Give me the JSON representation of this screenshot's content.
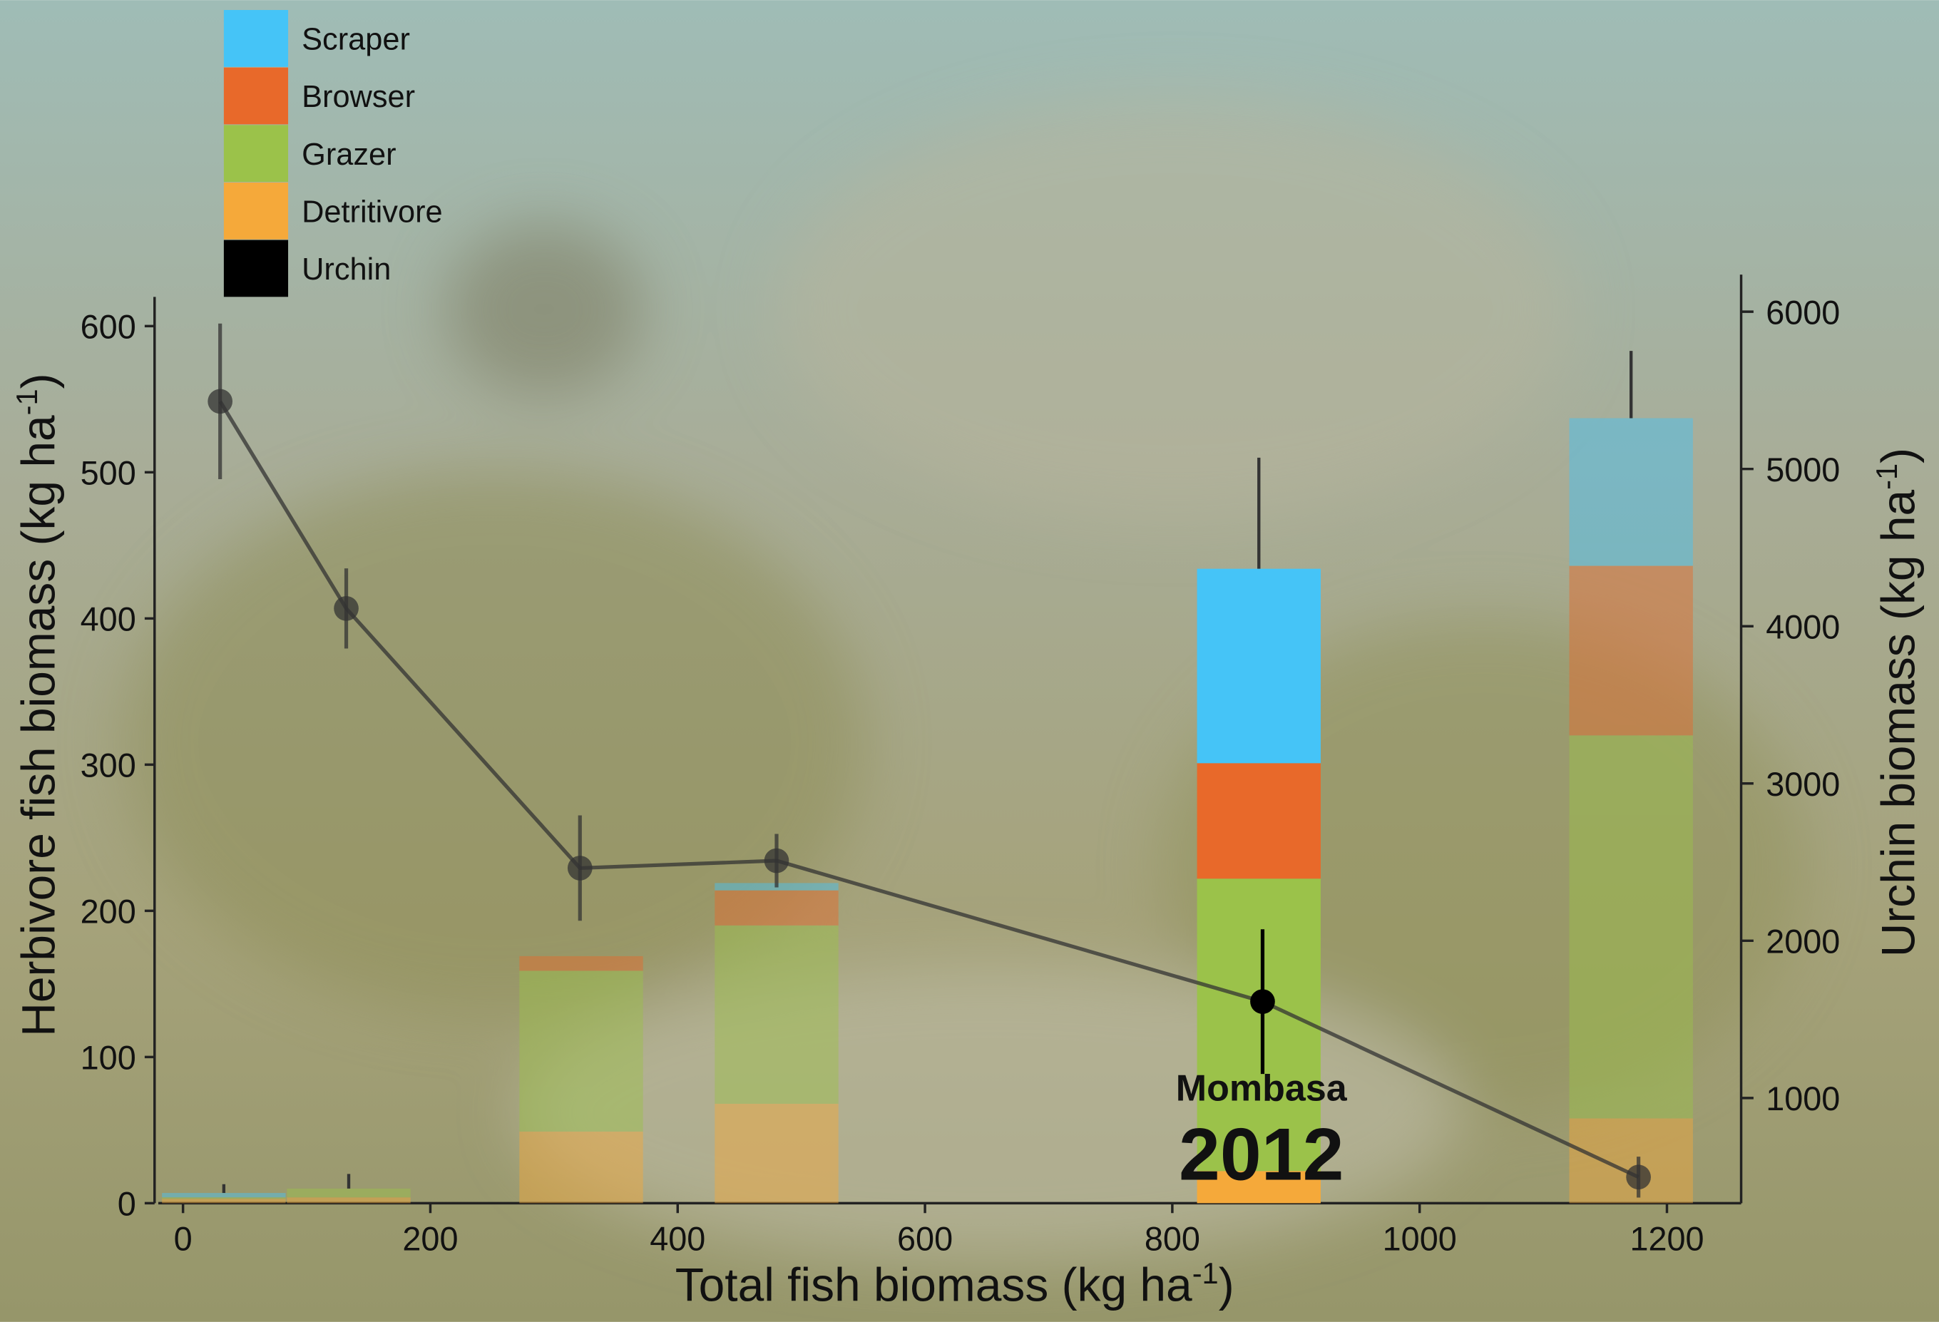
{
  "chart_data": {
    "type": "bar",
    "stacked": true,
    "x_label": {
      "text": "Total fish biomass (kg ha",
      "sup": "-1",
      "end": ")"
    },
    "y_label": {
      "text": "Herbivore fish biomass (kg ha",
      "sup": "-1",
      "end": ")"
    },
    "y2_label": {
      "text": "Urchin biomass (kg ha",
      "sup": "-1",
      "end": ")"
    },
    "x": [
      33,
      134,
      322,
      480,
      870,
      1171
    ],
    "series": [
      {
        "name": "Scraper",
        "color": "#45c4f7",
        "values": [
          3,
          0,
          0,
          5,
          133,
          101
        ]
      },
      {
        "name": "Browser",
        "color": "#e8692a",
        "values": [
          0,
          0,
          10,
          24,
          79,
          116
        ]
      },
      {
        "name": "Grazer",
        "color": "#9bc24a",
        "values": [
          1,
          6,
          110,
          122,
          200,
          262
        ]
      },
      {
        "name": "Detritivore",
        "color": "#f5a93a",
        "values": [
          3,
          4,
          49,
          68,
          22,
          58
        ]
      },
      {
        "name": "Urchin",
        "color": "#000000",
        "axis": "y2",
        "type": "line",
        "x": [
          30,
          132,
          321,
          480,
          873,
          1177
        ],
        "values": [
          5430,
          4113,
          2462,
          2509,
          1613,
          497
        ],
        "errors": [
          495,
          255,
          335,
          170,
          460,
          130
        ]
      }
    ],
    "herbivore_errors": [
      6,
      10,
      null,
      null,
      76,
      46
    ],
    "bar_opacity": [
      0.45,
      0.45,
      0.45,
      0.45,
      1,
      0.45
    ],
    "annotations": [
      "Mombasa",
      "2012"
    ],
    "xlim": [
      -20,
      1260
    ],
    "ylim": [
      0,
      620
    ],
    "y2lim": [
      331,
      6236
    ],
    "xticks": [
      0,
      200,
      400,
      600,
      800,
      1000,
      1200
    ],
    "yticks": [
      0,
      100,
      200,
      300,
      400,
      500,
      600
    ],
    "y2ticks": [
      1000,
      2000,
      3000,
      4000,
      5000,
      6000
    ]
  }
}
